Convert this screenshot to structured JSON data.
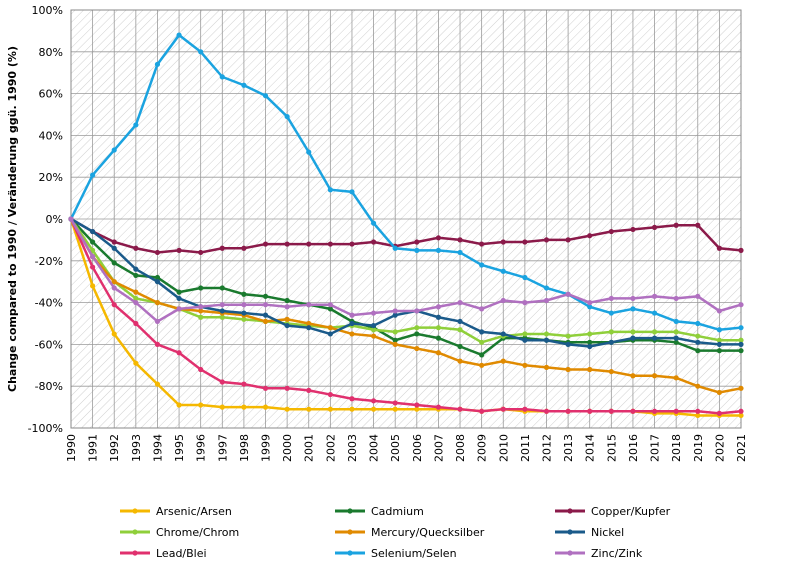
{
  "chart_data": {
    "type": "line",
    "y_label": "Change compared to 1990 / Veränderung ggü. 1990 (%)",
    "categories": [
      "1990",
      "1991",
      "1992",
      "1993",
      "1994",
      "1995",
      "1996",
      "1997",
      "1998",
      "1999",
      "2000",
      "2001",
      "2002",
      "2003",
      "2004",
      "2005",
      "2006",
      "2007",
      "2008",
      "2009",
      "2010",
      "2011",
      "2012",
      "2013",
      "2014",
      "2015",
      "2016",
      "2017",
      "2018",
      "2019",
      "2020",
      "2021"
    ],
    "ylim": [
      -100,
      100
    ],
    "yticks": [
      {
        "value": -100,
        "label": "-100%"
      },
      {
        "value": -80,
        "label": "-80%"
      },
      {
        "value": -60,
        "label": "-60%"
      },
      {
        "value": -40,
        "label": "-40%"
      },
      {
        "value": -20,
        "label": "-20%"
      },
      {
        "value": 0,
        "label": "0%"
      },
      {
        "value": 20,
        "label": "20%"
      },
      {
        "value": 40,
        "label": "40%"
      },
      {
        "value": 60,
        "label": "60%"
      },
      {
        "value": 80,
        "label": "80%"
      },
      {
        "value": 100,
        "label": "100%"
      }
    ],
    "grid": true,
    "legend": "bottom",
    "series": [
      {
        "name": "Arsenic/Arsen",
        "color": "#f5b800",
        "values": [
          0,
          -32,
          -55,
          -69,
          -79,
          -89,
          -89,
          -90,
          -90,
          -90,
          -91,
          -91,
          -91,
          -91,
          -91,
          -91,
          -91,
          -91,
          -91,
          -92,
          -91,
          -92,
          -92,
          -92,
          -92,
          -92,
          -92,
          -93,
          -93,
          -94,
          -94,
          -94
        ]
      },
      {
        "name": "Cadmium",
        "color": "#1a7a2e",
        "values": [
          0,
          -11,
          -21,
          -27,
          -28,
          -35,
          -33,
          -33,
          -36,
          -37,
          -39,
          -41,
          -43,
          -49,
          -52,
          -58,
          -55,
          -57,
          -61,
          -65,
          -57,
          -57,
          -58,
          -59,
          -59,
          -59,
          -58,
          -58,
          -59,
          -63,
          -63,
          -63
        ]
      },
      {
        "name": "Copper/Kupfer",
        "color": "#8b1a4a",
        "values": [
          0,
          -6,
          -11,
          -14,
          -16,
          -15,
          -16,
          -14,
          -14,
          -12,
          -12,
          -12,
          -12,
          -12,
          -11,
          -13,
          -11,
          -9,
          -10,
          -12,
          -11,
          -11,
          -10,
          -10,
          -8,
          -6,
          -5,
          -4,
          -3,
          -3,
          -14,
          -15
        ]
      },
      {
        "name": "Chrome/Chrom",
        "color": "#8fcf3a",
        "values": [
          0,
          -15,
          -30,
          -38,
          -40,
          -43,
          -47,
          -47,
          -48,
          -49,
          -50,
          -51,
          -52,
          -51,
          -53,
          -54,
          -52,
          -52,
          -53,
          -59,
          -56,
          -55,
          -55,
          -56,
          -55,
          -54,
          -54,
          -54,
          -54,
          -56,
          -58,
          -58
        ]
      },
      {
        "name": "Mercury/Quecksilber",
        "color": "#e08a00",
        "values": [
          0,
          -18,
          -30,
          -35,
          -40,
          -43,
          -44,
          -45,
          -46,
          -49,
          -48,
          -50,
          -52,
          -55,
          -56,
          -60,
          -62,
          -64,
          -68,
          -70,
          -68,
          -70,
          -71,
          -72,
          -72,
          -73,
          -75,
          -75,
          -76,
          -80,
          -83,
          -81
        ]
      },
      {
        "name": "Nickel",
        "color": "#1a5a8a",
        "values": [
          0,
          -6,
          -14,
          -24,
          -30,
          -38,
          -42,
          -44,
          -45,
          -46,
          -51,
          -52,
          -55,
          -50,
          -51,
          -46,
          -44,
          -47,
          -49,
          -54,
          -55,
          -58,
          -58,
          -60,
          -61,
          -59,
          -57,
          -57,
          -57,
          -59,
          -60,
          -60
        ]
      },
      {
        "name": "Lead/Blei",
        "color": "#e0306e",
        "values": [
          0,
          -23,
          -41,
          -50,
          -60,
          -64,
          -72,
          -78,
          -79,
          -81,
          -81,
          -82,
          -84,
          -86,
          -87,
          -88,
          -89,
          -90,
          -91,
          -92,
          -91,
          -91,
          -92,
          -92,
          -92,
          -92,
          -92,
          -92,
          -92,
          -92,
          -93,
          -92
        ]
      },
      {
        "name": "Selenium/Selen",
        "color": "#1aa3e0",
        "values": [
          0,
          21,
          33,
          45,
          74,
          88,
          80,
          68,
          64,
          59,
          49,
          32,
          14,
          13,
          -2,
          -14,
          -15,
          -15,
          -16,
          -22,
          -25,
          -28,
          -33,
          -36,
          -42,
          -45,
          -43,
          -45,
          -49,
          -50,
          -53,
          -52
        ]
      },
      {
        "name": "Zinc/Zink",
        "color": "#b070c0",
        "values": [
          0,
          -18,
          -33,
          -40,
          -49,
          -43,
          -42,
          -41,
          -41,
          -41,
          -42,
          -41,
          -41,
          -46,
          -45,
          -44,
          -44,
          -42,
          -40,
          -43,
          -39,
          -40,
          -39,
          -36,
          -40,
          -38,
          -38,
          -37,
          -38,
          -37,
          -44,
          -41
        ]
      }
    ]
  }
}
